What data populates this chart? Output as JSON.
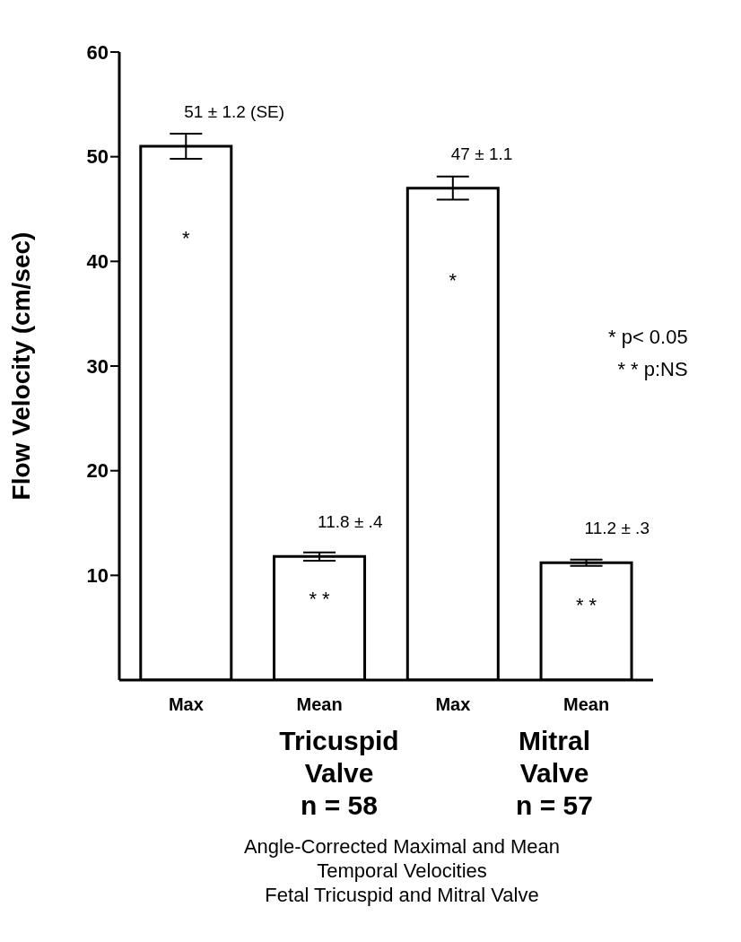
{
  "chart_data": {
    "type": "bar",
    "ylabel": "Flow Velocity (cm/sec)",
    "categories": [
      "Max",
      "Mean",
      "Max",
      "Mean"
    ],
    "values": [
      51,
      11.8,
      47,
      11.2
    ],
    "errors": [
      1.2,
      0.4,
      1.1,
      0.3
    ],
    "value_labels": [
      "51 ± 1.2 (SE)",
      "11.8 ± .4",
      "47 ± 1.1",
      "11.2 ± .3"
    ],
    "color": "#ffffff",
    "ylim": [
      0,
      60
    ],
    "yticks": [
      10,
      20,
      30,
      40,
      50,
      60
    ],
    "grid": false,
    "legend": false,
    "annotations": [
      "*",
      "* *",
      "*",
      "* *",
      "* p< 0.05",
      "* * p:NS",
      "Tricuspid",
      "Valve",
      "n = 58",
      "Mitral",
      "Valve",
      "n = 57",
      "Angle-Corrected Maximal and Mean",
      "Temporal Velocities",
      "Fetal Tricuspid and Mitral Valve"
    ]
  }
}
